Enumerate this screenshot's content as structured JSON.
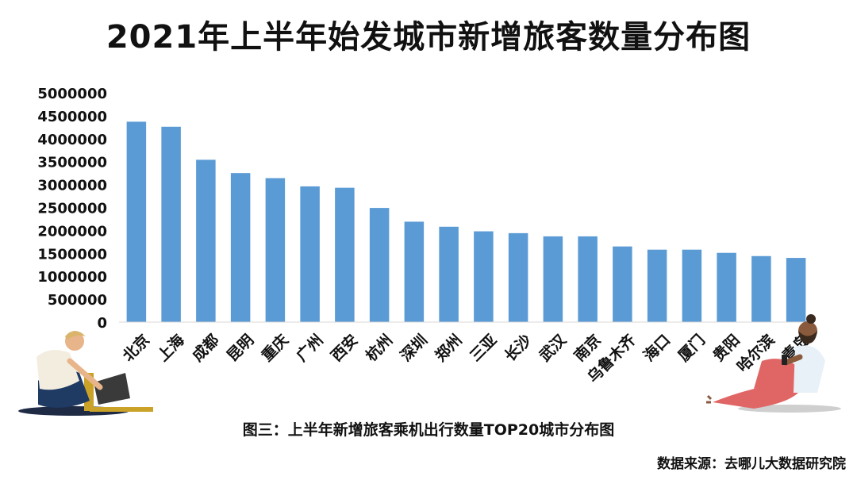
{
  "title": "2021年上半年始发城市新增旅客数量分布图",
  "caption": "图三：上半年新增旅客乘机出行数量TOP20城市分布图",
  "source": "数据来源：去哪儿大数据研究院",
  "colors": {
    "bar": "#5b9bd5",
    "text": "#111111",
    "axis": "#d9d9d9"
  },
  "illustrations": {
    "left": "person-with-laptop",
    "right": "person-with-phone"
  },
  "chart_data": {
    "type": "bar",
    "title": "",
    "xlabel": "",
    "ylabel": "",
    "ylim": [
      0,
      5000000
    ],
    "yticks": [
      "0",
      "500000",
      "1000000",
      "1500000",
      "2000000",
      "2500000",
      "3000000",
      "3500000",
      "4000000",
      "4500000",
      "5000000"
    ],
    "grid": false,
    "categories": [
      "北京",
      "上海",
      "成都",
      "昆明",
      "重庆",
      "广州",
      "西安",
      "杭州",
      "深圳",
      "郑州",
      "三亚",
      "长沙",
      "武汉",
      "南京",
      "乌鲁木齐",
      "海口",
      "厦门",
      "贵阳",
      "哈尔滨",
      "青岛"
    ],
    "values": [
      4370000,
      4260000,
      3540000,
      3250000,
      3140000,
      2960000,
      2930000,
      2490000,
      2190000,
      2080000,
      1980000,
      1940000,
      1870000,
      1870000,
      1650000,
      1580000,
      1580000,
      1510000,
      1440000,
      1400000
    ]
  }
}
